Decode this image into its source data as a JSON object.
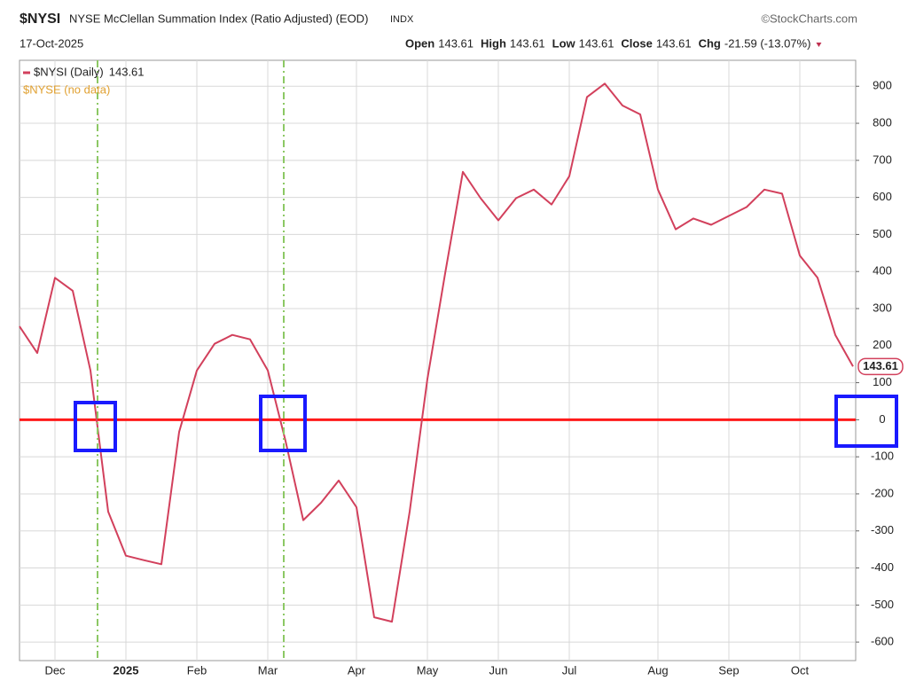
{
  "chart_data": {
    "type": "line",
    "symbol": "$NYSI",
    "title": "NYSE McClellan Summation Index (Ratio Adjusted) (EOD)",
    "exchange": "INDX",
    "source": "©StockCharts.com",
    "date": "17-Oct-2025",
    "quote": [
      {
        "label": "Open",
        "value": 143.61
      },
      {
        "label": "High",
        "value": 143.61
      },
      {
        "label": "Low",
        "value": 143.61
      },
      {
        "label": "Close",
        "value": 143.61
      },
      {
        "label": "Chg",
        "value": "-21.59 (-13.07%)"
      }
    ],
    "categories": [
      null,
      null,
      "Dec",
      null,
      null,
      null,
      "2025",
      null,
      null,
      null,
      "Feb",
      null,
      null,
      null,
      "Mar",
      null,
      null,
      null,
      null,
      "Apr",
      null,
      null,
      null,
      "May",
      null,
      null,
      null,
      "Jun",
      null,
      null,
      null,
      "Jul",
      null,
      null,
      null,
      null,
      "Aug",
      null,
      null,
      null,
      "Sep",
      null,
      null,
      null,
      "Oct",
      null,
      null,
      null
    ],
    "series": [
      {
        "name": "$NYSI (Daily)",
        "color": "#d2405c",
        "values": [
          252,
          180,
          383,
          348,
          133,
          -248,
          -367,
          -379,
          -390,
          -33,
          133,
          205,
          229,
          217,
          133,
          -57,
          -271,
          -224,
          -164,
          -236,
          -533,
          -545,
          -248,
          110,
          395,
          669,
          598,
          538,
          598,
          621,
          581,
          657,
          871,
          907,
          848,
          824,
          621,
          514,
          543,
          526,
          550,
          574,
          621,
          610,
          443,
          383,
          229,
          143.61
        ]
      }
    ],
    "overlay_legend": {
      "name": "$NYSE (no data)",
      "color": "#e0a030"
    },
    "reference_line": {
      "value": 0,
      "color": "#ff1a1a"
    },
    "ylim": [
      -650,
      970
    ],
    "yticks": [
      -600,
      -500,
      -400,
      -300,
      -200,
      -100,
      0,
      100,
      200,
      300,
      400,
      500,
      600,
      700,
      800,
      900
    ],
    "grid": true
  }
}
